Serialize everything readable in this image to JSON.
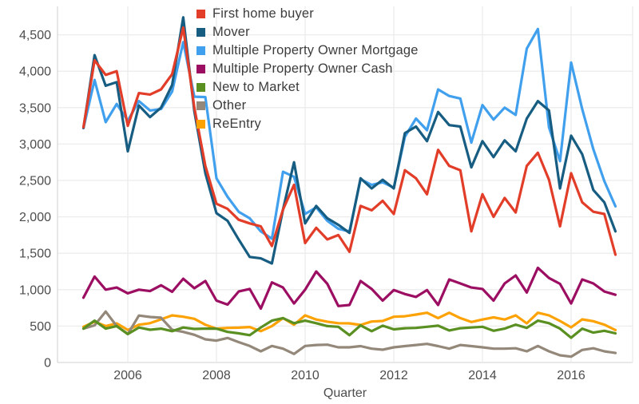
{
  "chart_data": {
    "type": "line",
    "title": "",
    "xlabel": "Quarter",
    "ylabel": "",
    "grid": true,
    "legend_position": "top-left",
    "x_axis": {
      "tick_labels": [
        "2006",
        "2008",
        "2010",
        "2012",
        "2014",
        "2016"
      ]
    },
    "y_axis": {
      "ticks": [
        0,
        500,
        1000,
        1500,
        2000,
        2500,
        3000,
        3500,
        4000,
        4500
      ],
      "range": [
        0,
        4750
      ]
    },
    "categories": [
      "2005 Q1",
      "2005 Q2",
      "2005 Q3",
      "2005 Q4",
      "2006 Q1",
      "2006 Q2",
      "2006 Q3",
      "2006 Q4",
      "2007 Q1",
      "2007 Q2",
      "2007 Q3",
      "2007 Q4",
      "2008 Q1",
      "2008 Q2",
      "2008 Q3",
      "2008 Q4",
      "2009 Q1",
      "2009 Q2",
      "2009 Q3",
      "2009 Q4",
      "2010 Q1",
      "2010 Q2",
      "2010 Q3",
      "2010 Q4",
      "2011 Q1",
      "2011 Q2",
      "2011 Q3",
      "2011 Q4",
      "2012 Q1",
      "2012 Q2",
      "2012 Q3",
      "2012 Q4",
      "2013 Q1",
      "2013 Q2",
      "2013 Q3",
      "2013 Q4",
      "2014 Q1",
      "2014 Q2",
      "2014 Q3",
      "2014 Q4",
      "2015 Q1",
      "2015 Q2",
      "2015 Q3",
      "2015 Q4",
      "2016 Q1",
      "2016 Q2",
      "2016 Q3",
      "2016 Q4",
      "2017 Q1"
    ],
    "series": [
      {
        "name": "First home buyer",
        "color": "#e23d28",
        "values": [
          3230,
          4150,
          3950,
          4000,
          3250,
          3700,
          3680,
          3750,
          3960,
          4600,
          3500,
          2700,
          2180,
          2110,
          1960,
          1910,
          1870,
          1600,
          2100,
          2440,
          1640,
          1850,
          1690,
          1750,
          1520,
          2150,
          2090,
          2220,
          2040,
          2640,
          2530,
          2310,
          2920,
          2700,
          2640,
          1800,
          2310,
          2000,
          2260,
          2060,
          2700,
          2880,
          2510,
          1870,
          2600,
          2200,
          2070,
          2040,
          1480
        ]
      },
      {
        "name": "Mover",
        "color": "#175d82",
        "values": [
          3220,
          4220,
          3800,
          3850,
          2900,
          3530,
          3370,
          3500,
          3810,
          4740,
          3450,
          2600,
          2050,
          1945,
          1690,
          1450,
          1430,
          1360,
          2100,
          2750,
          1910,
          2150,
          1980,
          1890,
          1780,
          2530,
          2390,
          2510,
          2390,
          3150,
          3240,
          3040,
          3440,
          3260,
          3240,
          2680,
          3040,
          2820,
          3050,
          2900,
          3350,
          3590,
          3460,
          2390,
          3115,
          2860,
          2370,
          2200,
          1800
        ]
      },
      {
        "name": "Multiple Property Owner Mortgage",
        "color": "#41a0ed",
        "values": [
          3220,
          3880,
          3300,
          3550,
          3320,
          3590,
          3460,
          3480,
          3720,
          4400,
          3650,
          3645,
          2530,
          2275,
          2070,
          1980,
          1800,
          1700,
          2620,
          2550,
          2040,
          2130,
          1945,
          1835,
          1800,
          2515,
          2440,
          2475,
          2400,
          3100,
          3350,
          3190,
          3750,
          3660,
          3625,
          3020,
          3535,
          3335,
          3500,
          3400,
          4310,
          4580,
          3230,
          2765,
          4120,
          3480,
          2930,
          2490,
          2145
        ]
      },
      {
        "name": "Multiple Property Owner Cash",
        "color": "#9b0e62",
        "values": [
          890,
          1180,
          1000,
          1030,
          950,
          1000,
          980,
          1060,
          970,
          1150,
          1020,
          1120,
          850,
          795,
          975,
          1010,
          740,
          1100,
          1030,
          810,
          1000,
          1250,
          1080,
          775,
          790,
          1120,
          1010,
          850,
          995,
          940,
          900,
          995,
          790,
          1140,
          1085,
          1030,
          1010,
          850,
          1085,
          1195,
          960,
          1300,
          1160,
          1080,
          810,
          1140,
          1085,
          975,
          930
        ]
      },
      {
        "name": "New to Market",
        "color": "#5a9021",
        "values": [
          465,
          575,
          465,
          500,
          390,
          480,
          450,
          465,
          430,
          480,
          460,
          465,
          465,
          420,
          400,
          375,
          480,
          575,
          610,
          540,
          575,
          540,
          500,
          490,
          375,
          510,
          430,
          505,
          455,
          470,
          475,
          490,
          505,
          440,
          470,
          480,
          490,
          435,
          465,
          520,
          475,
          575,
          540,
          465,
          340,
          465,
          410,
          435,
          400
        ]
      },
      {
        "name": "Other",
        "color": "#938879",
        "values": [
          465,
          510,
          700,
          500,
          390,
          645,
          625,
          615,
          450,
          420,
          380,
          318,
          300,
          337,
          280,
          227,
          154,
          227,
          190,
          117,
          227,
          240,
          245,
          208,
          208,
          225,
          190,
          175,
          208,
          225,
          240,
          255,
          225,
          190,
          240,
          225,
          208,
          190,
          190,
          195,
          154,
          227,
          154,
          99,
          80,
          172,
          195,
          154,
          130
        ]
      },
      {
        "name": "ReEntry",
        "color": "#fda205",
        "values": [
          490,
          560,
          500,
          537,
          446,
          519,
          540,
          592,
          647,
          628,
          600,
          519,
          465,
          475,
          478,
          487,
          430,
          500,
          610,
          519,
          647,
          590,
          560,
          540,
          537,
          515,
          563,
          570,
          628,
          635,
          658,
          683,
          610,
          683,
          610,
          556,
          590,
          620,
          590,
          647,
          537,
          683,
          647,
          570,
          482,
          592,
          567,
          520,
          445
        ]
      }
    ],
    "style": {
      "grid_color": "#ececec",
      "axis_line_color": "#d9d9d9",
      "tick_label_color": "#4d4d4d",
      "line_width": 3.2
    }
  }
}
